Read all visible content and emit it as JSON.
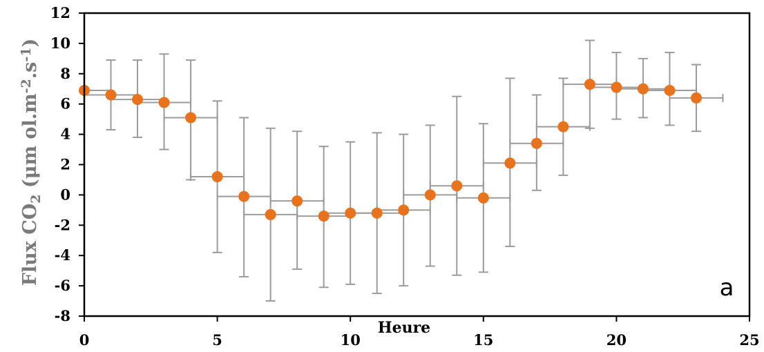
{
  "chart_data": {
    "type": "scatter",
    "panel_label": "a",
    "xlabel": "Heure",
    "ylabel": "Flux CO2 (µmol.m-2.s-1)",
    "ylabel_parts": {
      "pre": "Flux CO",
      "sub": "2",
      "mid": " (μm ol.m",
      "sup1": "-2",
      "mid2": ".s",
      "sup2": "-1",
      "post": ")"
    },
    "xlim": [
      0,
      25
    ],
    "ylim": [
      -8,
      12
    ],
    "x_ticks": [
      0,
      5,
      10,
      15,
      20,
      25
    ],
    "y_ticks": [
      -8,
      -6,
      -4,
      -2,
      0,
      2,
      4,
      6,
      8,
      10,
      12
    ],
    "grid": false,
    "marker_color": "#E8731C",
    "errorbar_color": "#9b9b9b",
    "series": [
      {
        "x": [
          0,
          1,
          2,
          3,
          4,
          5,
          6,
          7,
          8,
          9,
          10,
          11,
          12,
          13,
          14,
          15,
          16,
          17,
          18,
          19,
          20,
          21,
          22,
          23
        ],
        "y": [
          6.9,
          6.6,
          6.3,
          6.1,
          5.1,
          1.2,
          -0.1,
          -1.3,
          -0.4,
          -1.4,
          -1.2,
          -1.2,
          -1.0,
          0.0,
          0.6,
          -0.2,
          2.1,
          3.4,
          4.5,
          7.3,
          7.1,
          7.0,
          6.9,
          6.4
        ],
        "y_low": [
          6.9,
          4.3,
          3.8,
          3.0,
          1.0,
          -3.8,
          -5.4,
          -7.0,
          -4.9,
          -6.1,
          -5.9,
          -6.5,
          -6.0,
          -4.7,
          -5.3,
          -5.1,
          -3.4,
          0.3,
          1.3,
          4.4,
          5.0,
          5.1,
          4.6,
          4.2
        ],
        "y_high": [
          6.9,
          8.9,
          8.9,
          9.3,
          8.9,
          6.2,
          5.1,
          4.4,
          4.2,
          3.2,
          3.5,
          4.1,
          4.0,
          4.6,
          6.5,
          4.7,
          7.7,
          6.6,
          7.7,
          10.2,
          9.4,
          9.0,
          9.4,
          8.6
        ],
        "x_low": [
          0,
          0,
          1,
          2,
          3,
          4,
          5,
          6,
          7,
          8,
          9,
          10,
          11,
          12,
          13,
          14,
          15,
          16,
          17,
          18,
          19,
          20,
          21,
          22
        ],
        "x_high": [
          1,
          2,
          3,
          4,
          5,
          6,
          7,
          8,
          9,
          10,
          11,
          12,
          13,
          14,
          15,
          16,
          17,
          18,
          19,
          20,
          21,
          22,
          23,
          24
        ]
      }
    ]
  }
}
